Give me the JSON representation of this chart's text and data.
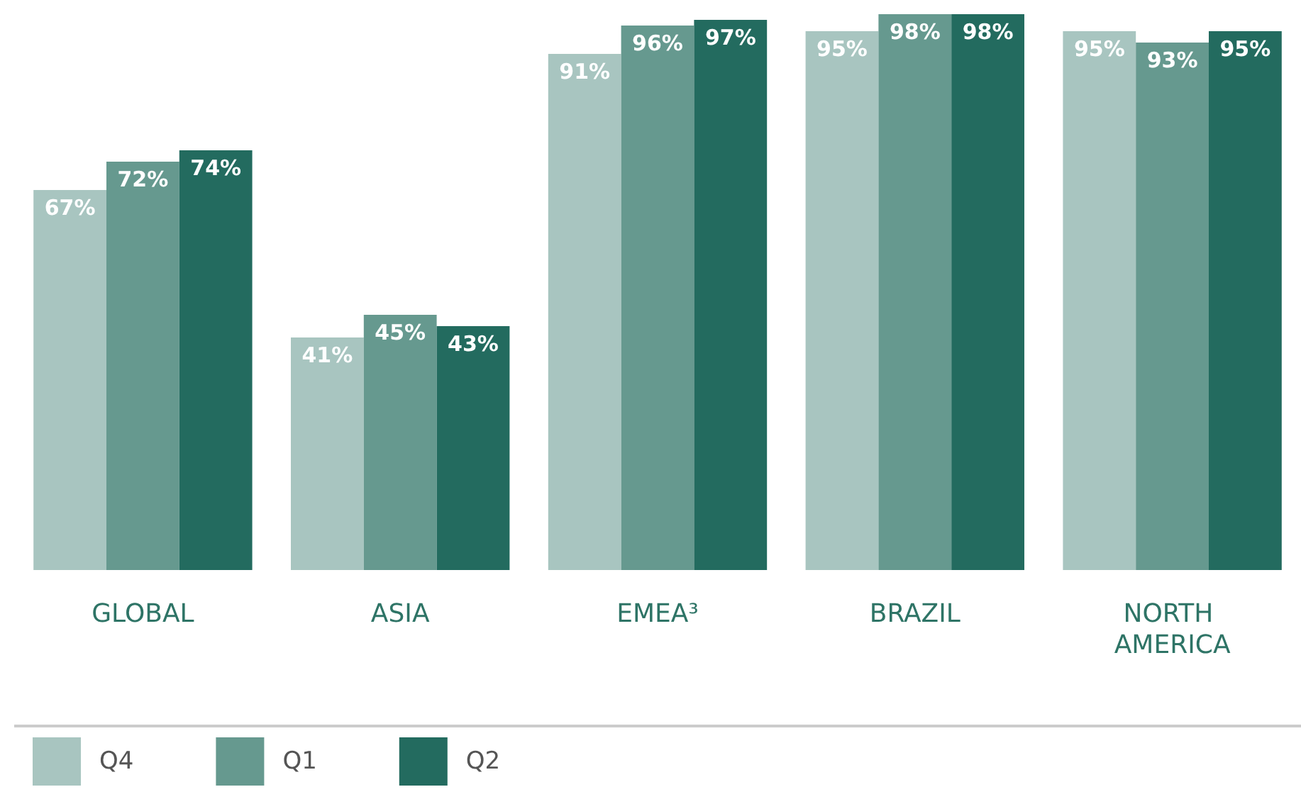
{
  "chart_data": {
    "type": "bar",
    "categories": [
      "GLOBAL",
      "ASIA",
      "EMEA³",
      "BRAZIL",
      "NORTH AMERICA"
    ],
    "series": [
      {
        "name": "Q4",
        "color": "#a8c5c0",
        "values": [
          67,
          41,
          91,
          95,
          95
        ],
        "value_labels": [
          "67%",
          "41%",
          "91%",
          "95%",
          "95%"
        ]
      },
      {
        "name": "Q1",
        "color": "#66998f",
        "values": [
          72,
          45,
          96,
          98,
          93
        ],
        "value_labels": [
          "72%",
          "45%",
          "96%",
          "98%",
          "93%"
        ]
      },
      {
        "name": "Q2",
        "color": "#236b5f",
        "values": [
          74,
          43,
          97,
          98,
          95
        ],
        "value_labels": [
          "74%",
          "43%",
          "97%",
          "98%",
          "95%"
        ]
      }
    ],
    "legend": "bottom left",
    "grid": false
  }
}
